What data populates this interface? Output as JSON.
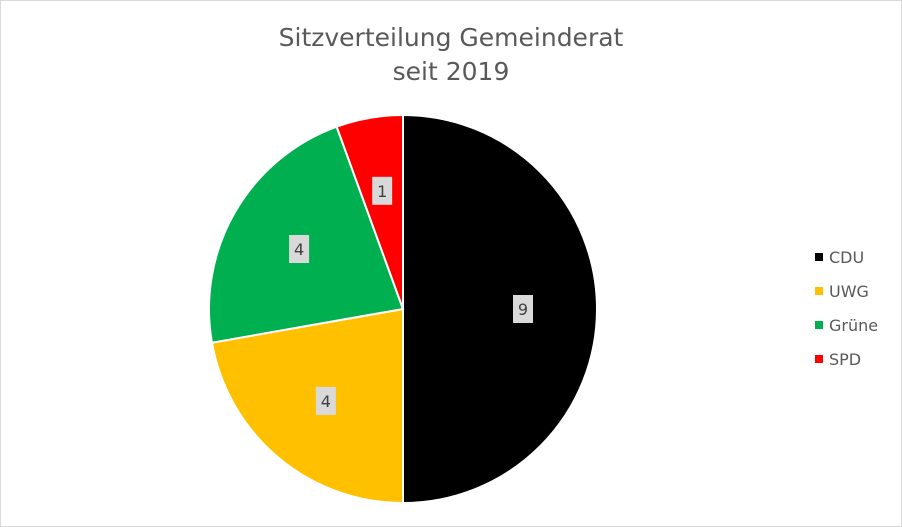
{
  "chart_data": {
    "type": "pie",
    "title": "Sitzverteilung Gemeinderat",
    "subtitle": "seit 2019",
    "categories": [
      "CDU",
      "UWG",
      "Grüne",
      "SPD"
    ],
    "values": [
      9,
      4,
      4,
      1
    ],
    "data_labels": [
      "9",
      "4",
      "4",
      "1"
    ],
    "colors": [
      "#000000",
      "#ffc000",
      "#00b050",
      "#ff0000"
    ],
    "legend_position": "right"
  }
}
